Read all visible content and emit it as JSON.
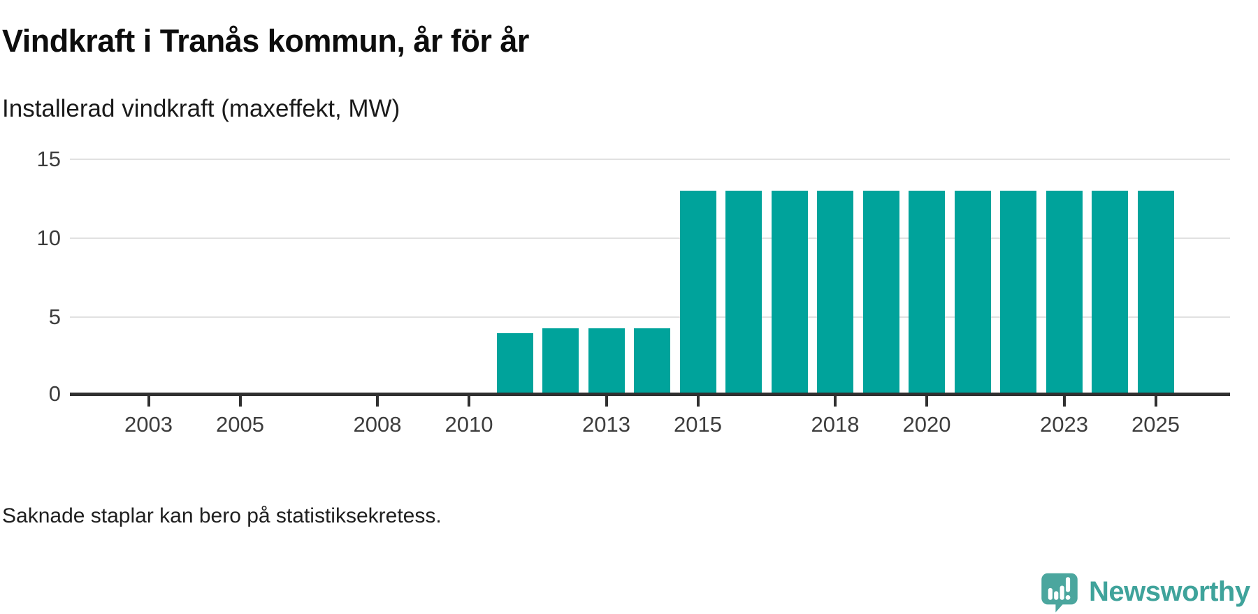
{
  "chart_data": {
    "type": "bar",
    "title": "Vindkraft i Tranås kommun, år för år",
    "subtitle": "Installerad vindkraft (maxeffekt, MW)",
    "note": "Saknade staplar kan bero på statistiksekretess.",
    "categories": [
      2011,
      2012,
      2013,
      2014,
      2015,
      2016,
      2017,
      2018,
      2019,
      2020,
      2021,
      2022,
      2023,
      2024,
      2025
    ],
    "values": [
      4,
      4.3,
      4.3,
      4.3,
      13,
      13,
      13,
      13,
      13,
      13,
      13,
      13,
      13,
      13,
      13
    ],
    "x_domain": [
      2001.3,
      2026.6
    ],
    "x_tick_years": [
      2003,
      2005,
      2008,
      2010,
      2013,
      2015,
      2018,
      2020,
      2023,
      2025
    ],
    "y_ticks": [
      0,
      5,
      10,
      15
    ],
    "ylim": [
      0,
      16.7
    ],
    "grid": "horizontal-only",
    "legend": "none",
    "bar_color": "#00a39b",
    "axis_color": "#303030",
    "gridline_color": "#e1e1e1",
    "tick_label_color": "#3d3d3d"
  },
  "branding": {
    "name": "Newsworthy",
    "text_color": "#3fa39b",
    "icon_color": "#4ba69e",
    "icon_shadow_color": "#3d948d",
    "icon_glyph": "speech-bubble-with-bar-chart-and-exclamation"
  }
}
